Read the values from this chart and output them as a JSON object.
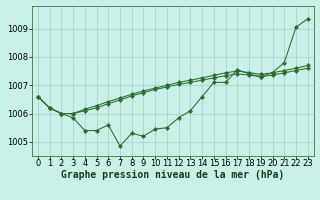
{
  "title": "Graphe pression niveau de la mer (hPa)",
  "bg_color": "#c8f0e8",
  "grid_color": "#9ecfc4",
  "line_color": "#2a6e2a",
  "xlim": [
    -0.5,
    23.5
  ],
  "ylim": [
    1004.5,
    1009.8
  ],
  "xticks": [
    0,
    1,
    2,
    3,
    4,
    5,
    6,
    7,
    8,
    9,
    10,
    11,
    12,
    13,
    14,
    15,
    16,
    17,
    18,
    19,
    20,
    21,
    22,
    23
  ],
  "yticks": [
    1005,
    1006,
    1007,
    1008,
    1009
  ],
  "line1": [
    1006.6,
    1006.2,
    1006.0,
    1005.85,
    1005.4,
    1005.4,
    1005.6,
    1004.85,
    1005.3,
    1005.2,
    1005.45,
    1005.5,
    1005.85,
    1006.1,
    1006.6,
    1007.1,
    1007.1,
    1007.55,
    1007.4,
    1007.3,
    1007.45,
    1007.8,
    1009.05,
    1009.35
  ],
  "line2": [
    1006.6,
    1006.2,
    1006.0,
    1006.0,
    1006.15,
    1006.28,
    1006.42,
    1006.55,
    1006.68,
    1006.8,
    1006.9,
    1007.0,
    1007.1,
    1007.18,
    1007.26,
    1007.35,
    1007.44,
    1007.5,
    1007.45,
    1007.38,
    1007.44,
    1007.52,
    1007.6,
    1007.7
  ],
  "line3": [
    1006.6,
    1006.2,
    1006.0,
    1006.0,
    1006.1,
    1006.2,
    1006.35,
    1006.48,
    1006.62,
    1006.74,
    1006.85,
    1006.94,
    1007.03,
    1007.1,
    1007.18,
    1007.26,
    1007.34,
    1007.4,
    1007.36,
    1007.3,
    1007.36,
    1007.44,
    1007.52,
    1007.6
  ],
  "title_fontsize": 7,
  "tick_fontsize": 6
}
